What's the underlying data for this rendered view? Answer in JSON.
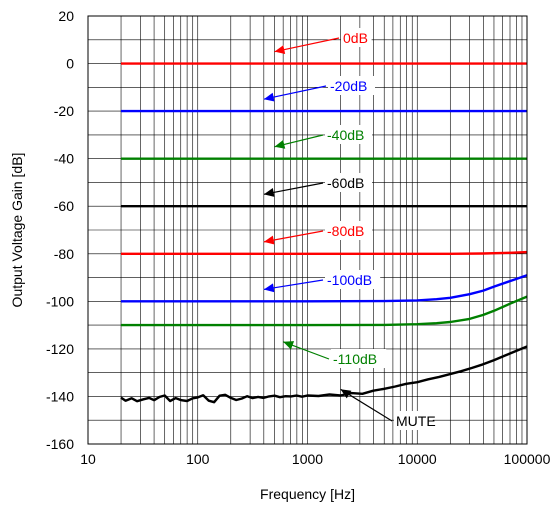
{
  "chart_data": {
    "type": "line",
    "title": "",
    "xlabel": "Frequency [Hz]",
    "ylabel": "Output Voltage Gain [dB]",
    "xscale": "log",
    "xlim": [
      10,
      100000
    ],
    "ylim": [
      -160,
      20
    ],
    "xticks": [
      10,
      100,
      1000,
      10000,
      100000
    ],
    "xtick_labels": [
      "10",
      "100",
      "1000",
      "10000",
      "100000"
    ],
    "yticks": [
      20,
      0,
      -20,
      -40,
      -60,
      -80,
      -100,
      -120,
      -140,
      -160
    ],
    "ytick_labels": [
      "20",
      "0",
      "-20",
      "-40",
      "-60",
      "-80",
      "-100",
      "-120",
      "-140",
      "-160"
    ],
    "grid": true,
    "series": [
      {
        "name": "0dB",
        "color": "#ff0000",
        "x": [
          20,
          1000,
          10000,
          100000
        ],
        "y": [
          0,
          0,
          0,
          0
        ]
      },
      {
        "name": "-20dB",
        "color": "#0000ff",
        "x": [
          20,
          1000,
          10000,
          100000
        ],
        "y": [
          -20,
          -20,
          -20,
          -20
        ]
      },
      {
        "name": "-40dB",
        "color": "#008000",
        "x": [
          20,
          1000,
          10000,
          100000
        ],
        "y": [
          -40,
          -40,
          -40,
          -40
        ]
      },
      {
        "name": "-60dB",
        "color": "#000000",
        "x": [
          20,
          1000,
          10000,
          100000
        ],
        "y": [
          -60,
          -60,
          -60,
          -60
        ]
      },
      {
        "name": "-80dB",
        "color": "#ff0000",
        "x": [
          20,
          1000,
          10000,
          20000,
          40000,
          70000,
          100000
        ],
        "y": [
          -80,
          -80,
          -80,
          -80,
          -79.9,
          -79.6,
          -79.3
        ]
      },
      {
        "name": "-100dB",
        "color": "#0000ff",
        "x": [
          20,
          1000,
          5000,
          10000,
          15000,
          20000,
          30000,
          40000,
          50000,
          70000,
          100000
        ],
        "y": [
          -100,
          -100,
          -99.9,
          -99.6,
          -99.1,
          -98.5,
          -97,
          -95.5,
          -93.8,
          -91.5,
          -89
        ]
      },
      {
        "name": "-110dB",
        "color": "#008000",
        "x": [
          20,
          1000,
          5000,
          10000,
          15000,
          20000,
          30000,
          40000,
          50000,
          70000,
          100000
        ],
        "y": [
          -110,
          -110,
          -109.9,
          -109.6,
          -109.2,
          -108.7,
          -107.4,
          -105.7,
          -104,
          -101,
          -98
        ]
      },
      {
        "name": "MUTE",
        "color": "#000000",
        "x": [
          20,
          22,
          25,
          28,
          32,
          36,
          40,
          45,
          50,
          56,
          63,
          71,
          80,
          90,
          100,
          112,
          126,
          141,
          158,
          178,
          200,
          224,
          251,
          282,
          316,
          355,
          398,
          447,
          501,
          562,
          631,
          708,
          794,
          891,
          1000,
          1259,
          1585,
          1995,
          2512,
          3162,
          3981,
          5012,
          6310,
          7943,
          10000,
          12589,
          15849,
          19953,
          25119,
          31623,
          39811,
          50119,
          63096,
          79433,
          100000
        ],
        "y": [
          -140.5,
          -141.8,
          -140.8,
          -142,
          -141.2,
          -140.6,
          -141.6,
          -140.2,
          -139.6,
          -141.9,
          -140.7,
          -141.6,
          -141.9,
          -140.8,
          -140.4,
          -139.5,
          -141.8,
          -142.4,
          -139.7,
          -139.3,
          -140.6,
          -141.5,
          -140.9,
          -139.9,
          -140.7,
          -140.2,
          -140.6,
          -140,
          -139.7,
          -140.3,
          -139.9,
          -140,
          -139.6,
          -140.1,
          -139.6,
          -139.8,
          -139.2,
          -139.6,
          -138.6,
          -138.9,
          -137.6,
          -136.8,
          -135.8,
          -134.7,
          -134,
          -132.8,
          -131.8,
          -130.6,
          -129.4,
          -128,
          -126.5,
          -124.7,
          -122.8,
          -120.9,
          -119
        ]
      }
    ],
    "annotations": [
      {
        "text": "0dB",
        "color": "#ff0000",
        "points_to": [
          500,
          5
        ]
      },
      {
        "text": "-20dB",
        "color": "#0000ff",
        "points_to": [
          400,
          -15
        ]
      },
      {
        "text": "-40dB",
        "color": "#008000",
        "points_to": [
          500,
          -35
        ]
      },
      {
        "text": "-60dB",
        "color": "#000000",
        "points_to": [
          400,
          -55
        ]
      },
      {
        "text": "-80dB",
        "color": "#ff0000",
        "points_to": [
          400,
          -75
        ]
      },
      {
        "text": "-100dB",
        "color": "#0000ff",
        "points_to": [
          400,
          -95
        ]
      },
      {
        "text": "-110dB",
        "color": "#008000",
        "points_to": [
          600,
          -117
        ]
      },
      {
        "text": "MUTE",
        "color": "#000000",
        "points_to": [
          2000,
          -137
        ]
      }
    ]
  }
}
